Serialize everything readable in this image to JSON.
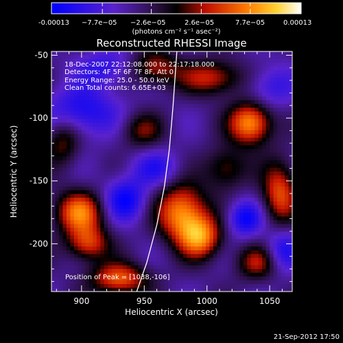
{
  "chart_data": {
    "type": "heatmap",
    "title": "Reconstructed RHESSI Image",
    "xlabel": "Heliocentric X (arcsec)",
    "ylabel": "Heliocentric Y (arcsec)",
    "xlim": [
      876,
      1068
    ],
    "ylim": [
      -238,
      -47
    ],
    "x_ticks": [
      900,
      950,
      1000,
      1050
    ],
    "y_ticks": [
      -50,
      -100,
      -150,
      -200
    ],
    "info_lines": [
      "18-Dec-2007 22:12:08.000 to 22:17:18.000",
      "Detectors: 4F 5F 6F 7F 8F, Att 0",
      "Energy Range: 25.0 - 50.0 keV",
      "Clean     Total counts: 6.65E+03"
    ],
    "peak_label": "Position of Peak = [1038,-106]",
    "colorbar": {
      "min": -0.00013,
      "max": 0.00013,
      "tick_labels": [
        "-0.00013",
        "−7.7e−05",
        "−2.6e−05",
        "2.6e−05",
        "7.7e−05",
        "0.00013"
      ],
      "units_label": "(photons cm⁻² s⁻¹ asec⁻²)"
    },
    "footer_date": "21-Sep-2012 17:50",
    "limb_curve": [
      [
        944,
        -238
      ],
      [
        952,
        -215
      ],
      [
        960,
        -185
      ],
      [
        966,
        -155
      ],
      [
        970,
        -125
      ],
      [
        973,
        -90
      ],
      [
        976,
        -47
      ]
    ],
    "blobs": [
      {
        "x": 1035,
        "y": -104,
        "sx": 12,
        "sy": 12,
        "a": 1.0
      },
      {
        "x": 980,
        "y": -175,
        "sx": 14,
        "sy": 16,
        "a": 0.95
      },
      {
        "x": 995,
        "y": -195,
        "sx": 12,
        "sy": 12,
        "a": 0.85
      },
      {
        "x": 898,
        "y": -175,
        "sx": 14,
        "sy": 12,
        "a": 0.85
      },
      {
        "x": 905,
        "y": -200,
        "sx": 12,
        "sy": 10,
        "a": 0.7
      },
      {
        "x": 930,
        "y": -228,
        "sx": 16,
        "sy": 9,
        "a": 0.8
      },
      {
        "x": 1058,
        "y": -160,
        "sx": 10,
        "sy": 18,
        "a": 0.75
      },
      {
        "x": 1005,
        "y": -68,
        "sx": 18,
        "sy": 10,
        "a": 0.65
      },
      {
        "x": 958,
        "y": -60,
        "sx": 14,
        "sy": 10,
        "a": 0.6
      },
      {
        "x": 1040,
        "y": -215,
        "sx": 12,
        "sy": 10,
        "a": 0.55
      },
      {
        "x": 1015,
        "y": -140,
        "sx": 12,
        "sy": 12,
        "a": 0.5
      },
      {
        "x": 948,
        "y": -110,
        "sx": 12,
        "sy": 10,
        "a": 0.45
      },
      {
        "x": 885,
        "y": -118,
        "sx": 10,
        "sy": 14,
        "a": 0.5
      },
      {
        "x": 900,
        "y": -95,
        "sx": 20,
        "sy": 14,
        "a": -0.55
      },
      {
        "x": 935,
        "y": -165,
        "sx": 12,
        "sy": 12,
        "a": -0.6
      },
      {
        "x": 1030,
        "y": -180,
        "sx": 10,
        "sy": 10,
        "a": -0.6
      },
      {
        "x": 1060,
        "y": -205,
        "sx": 10,
        "sy": 12,
        "a": -0.5
      },
      {
        "x": 960,
        "y": -140,
        "sx": 14,
        "sy": 10,
        "a": -0.4
      },
      {
        "x": 1050,
        "y": -75,
        "sx": 14,
        "sy": 12,
        "a": -0.4
      },
      {
        "x": 920,
        "y": -60,
        "sx": 16,
        "sy": 10,
        "a": -0.4
      }
    ]
  }
}
